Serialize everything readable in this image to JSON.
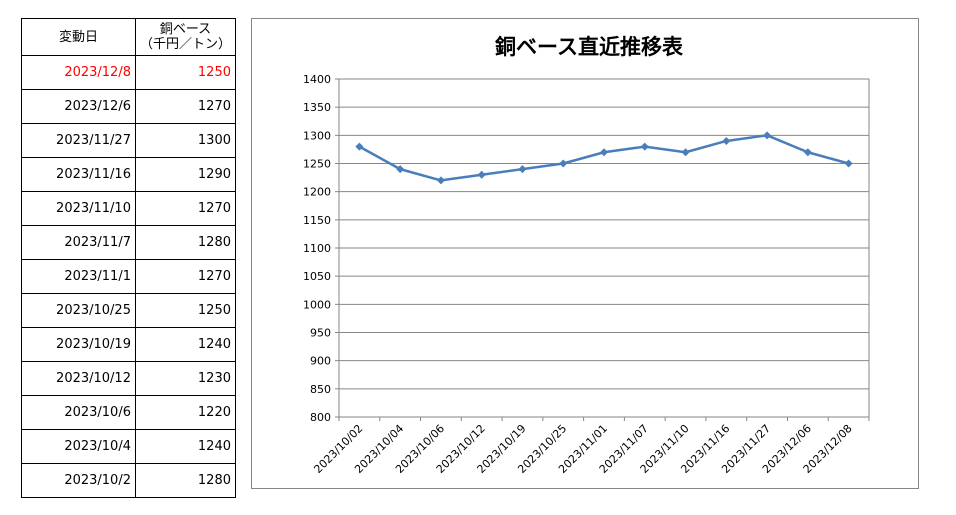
{
  "table": {
    "header": {
      "date": "変動日",
      "value_line1": "銅ベース",
      "value_line2": "（千円／トン）"
    },
    "rows": [
      {
        "date": "2023/12/8",
        "value": "1250",
        "highlight": true
      },
      {
        "date": "2023/12/6",
        "value": "1270"
      },
      {
        "date": "2023/11/27",
        "value": "1300"
      },
      {
        "date": "2023/11/16",
        "value": "1290"
      },
      {
        "date": "2023/11/10",
        "value": "1270"
      },
      {
        "date": "2023/11/7",
        "value": "1280"
      },
      {
        "date": "2023/11/1",
        "value": "1270"
      },
      {
        "date": "2023/10/25",
        "value": "1250"
      },
      {
        "date": "2023/10/19",
        "value": "1240"
      },
      {
        "date": "2023/10/12",
        "value": "1230"
      },
      {
        "date": "2023/10/6",
        "value": "1220"
      },
      {
        "date": "2023/10/4",
        "value": "1240"
      },
      {
        "date": "2023/10/2",
        "value": "1280"
      }
    ],
    "highlight_color": "#ff0000"
  },
  "chart_data": {
    "type": "line",
    "title": "銅ベース直近推移表",
    "xlabel": "",
    "ylabel": "",
    "categories": [
      "2023/10/02",
      "2023/10/04",
      "2023/10/06",
      "2023/10/12",
      "2023/10/19",
      "2023/10/25",
      "2023/11/01",
      "2023/11/07",
      "2023/11/10",
      "2023/11/16",
      "2023/11/27",
      "2023/12/06",
      "2023/12/08"
    ],
    "series": [
      {
        "values": [
          1280,
          1240,
          1220,
          1230,
          1240,
          1250,
          1270,
          1280,
          1270,
          1290,
          1300,
          1270,
          1250
        ],
        "color": "#4a7ebb"
      }
    ],
    "ylim": [
      800,
      1400
    ],
    "yticks": [
      800,
      850,
      900,
      950,
      1000,
      1050,
      1100,
      1150,
      1200,
      1250,
      1300,
      1350,
      1400
    ],
    "grid": true,
    "legend": "none",
    "marker": "diamond"
  }
}
